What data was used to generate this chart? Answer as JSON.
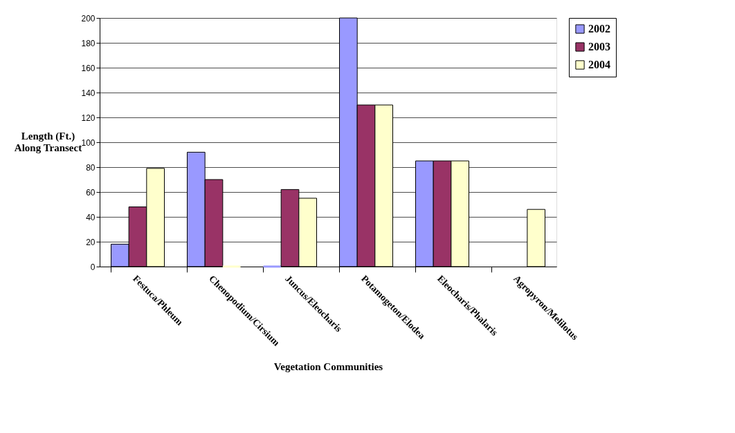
{
  "chart_data": {
    "type": "bar",
    "xlabel": "Vegetation Communities",
    "ylabel": "Length (Ft.)\nAlong Transect",
    "categories": [
      "Festuca/Phleum",
      "Chenopodium/Cirsium",
      "Juncus/Eleocharis",
      "Potamogeton/Elodea",
      "Eleocharis/Phalaris",
      "Agropyron/Melilotus"
    ],
    "series": [
      {
        "name": "2002",
        "color": "#9999ff",
        "values": [
          18,
          92,
          0,
          200,
          85,
          null
        ]
      },
      {
        "name": "2003",
        "color": "#993366",
        "values": [
          48,
          70,
          62,
          130,
          85,
          null
        ]
      },
      {
        "name": "2004",
        "color": "#ffffcc",
        "values": [
          79,
          0,
          55,
          130,
          85,
          46
        ]
      }
    ],
    "ylim": [
      0,
      200
    ],
    "yticks": [
      0,
      20,
      40,
      60,
      80,
      100,
      120,
      140,
      160,
      180,
      200
    ],
    "grid": "y",
    "legend": "right"
  }
}
